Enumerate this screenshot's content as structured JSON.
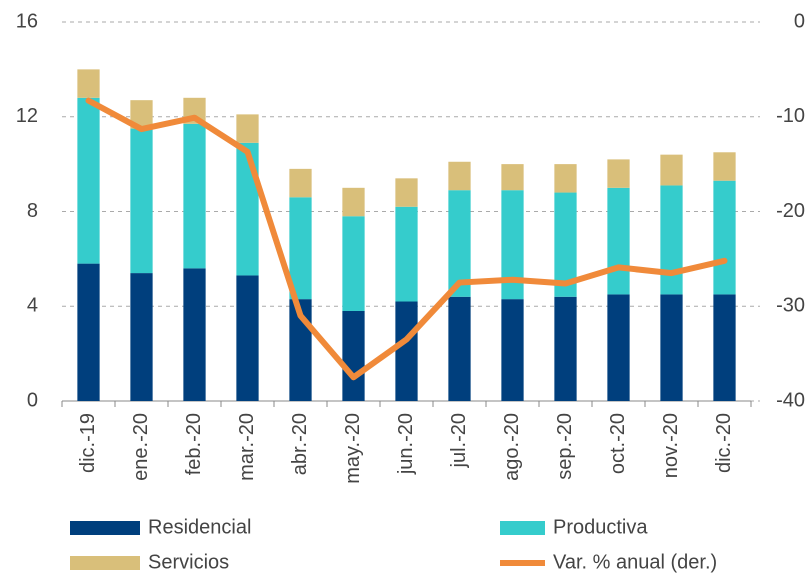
{
  "chart_data": {
    "type": "bar",
    "stacked": true,
    "categories": [
      "dic.-19",
      "ene.-20",
      "feb.-20",
      "mar.-20",
      "abr.-20",
      "may.-20",
      "jun.-20",
      "jul.-20",
      "ago.-20",
      "sep.-20",
      "oct.-20",
      "nov.-20",
      "dic.-20"
    ],
    "series": [
      {
        "name": "Residencial",
        "color": "#003f7d",
        "type": "bar",
        "values": [
          5.8,
          5.4,
          5.6,
          5.3,
          4.3,
          3.8,
          4.2,
          4.4,
          4.3,
          4.4,
          4.5,
          4.5,
          4.5
        ]
      },
      {
        "name": "Productiva",
        "color": "#35cccc",
        "type": "bar",
        "values": [
          7.0,
          6.1,
          6.1,
          5.6,
          4.3,
          4.0,
          4.0,
          4.5,
          4.6,
          4.4,
          4.5,
          4.6,
          4.8
        ]
      },
      {
        "name": "Servicios",
        "color": "#d9bf7a",
        "type": "bar",
        "values": [
          1.2,
          1.2,
          1.1,
          1.2,
          1.2,
          1.2,
          1.2,
          1.2,
          1.1,
          1.2,
          1.2,
          1.3,
          1.2
        ]
      },
      {
        "name": "Var. % anual (der.)",
        "color": "#f08a3a",
        "type": "line",
        "axis": "y2",
        "values": [
          -8.3,
          -11.3,
          -10.1,
          -13.7,
          -31.0,
          -37.5,
          -33.5,
          -27.5,
          -27.2,
          -27.6,
          -25.9,
          -26.5,
          -25.2
        ]
      }
    ],
    "ylim": [
      0,
      16
    ],
    "yticks": [
      0,
      4,
      8,
      12,
      16
    ],
    "y2lim": [
      -40,
      0
    ],
    "y2ticks": [
      0,
      -10,
      -20,
      -30,
      -40
    ],
    "grid": true,
    "legend": "bottom"
  }
}
